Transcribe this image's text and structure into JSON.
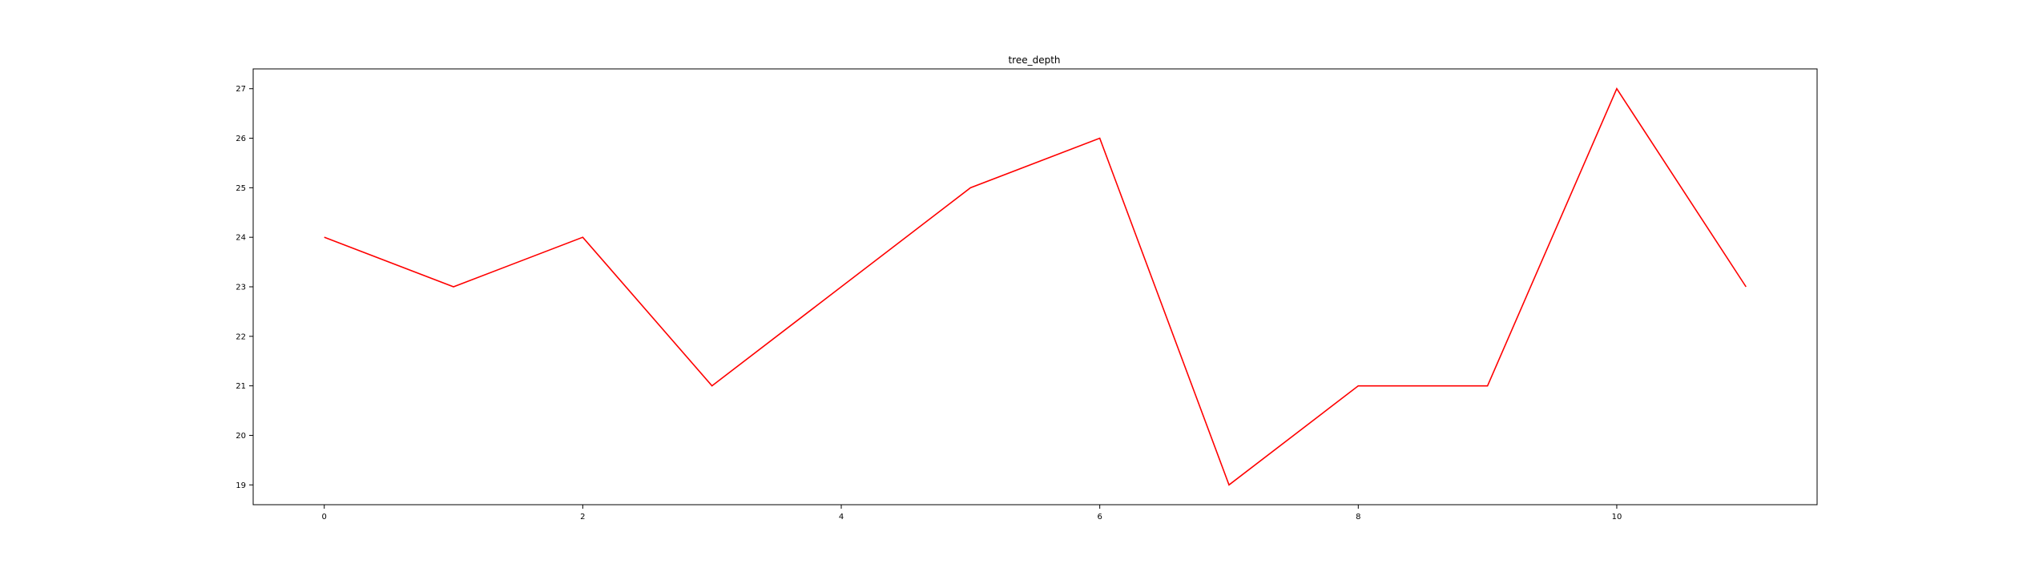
{
  "chart_data": {
    "type": "line",
    "title": "tree_depth",
    "xlabel": "",
    "ylabel": "",
    "x": [
      0,
      1,
      2,
      3,
      4,
      5,
      6,
      7,
      8,
      9,
      10,
      11
    ],
    "series": [
      {
        "values": [
          24,
          23,
          24,
          21,
          23,
          25,
          26,
          19,
          21,
          21,
          27,
          23
        ],
        "color": "#ff0000"
      }
    ],
    "xlim": [
      -0.55,
      11.55
    ],
    "ylim": [
      18.6,
      27.4
    ],
    "xticks": [
      0,
      2,
      4,
      6,
      8,
      10
    ],
    "yticks": [
      19,
      20,
      21,
      22,
      23,
      24,
      25,
      26,
      27
    ],
    "grid": false,
    "legend": "none"
  }
}
